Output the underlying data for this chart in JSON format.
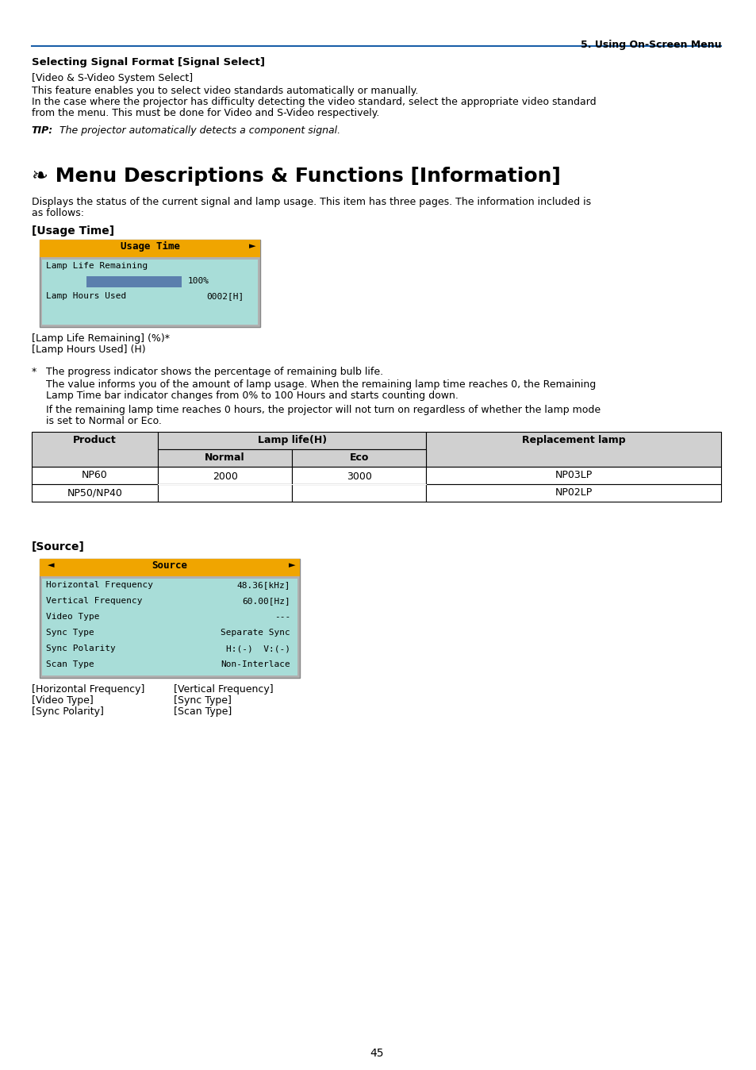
{
  "page_header": "5. Using On-Screen Menu",
  "section1_title": "Selecting Signal Format [Signal Select]",
  "section1_sub": "[Video & S-Video System Select]",
  "section1_body": "This feature enables you to select video standards automatically or manually.\nIn the case where the projector has difficulty detecting the video standard, select the appropriate video standard from the menu. This must be done for Video and S-Video respectively.",
  "tip_text": "TIP: The projector automatically detects a component signal.",
  "section2_title": "❧ Menu Descriptions & Functions [Information]",
  "section2_body": "Displays the status of the current signal and lamp usage. This item has three pages. The information included is as follows:",
  "usage_time_title": "[Usage Time]",
  "ui_usage_header": "Usage Time",
  "ui_lamp_life_label": "Lamp Life Remaining",
  "ui_lamp_life_pct": "100%",
  "ui_lamp_hours_label": "Lamp Hours Used",
  "ui_lamp_hours_val": "0002[H]",
  "ui_bar_color": "#5b7fad",
  "ui_header_bg": "#f0a500",
  "ui_body_bg": "#a8ddd8",
  "ui_outer_bg": "#b0b0b0",
  "caption1_line1": "[Lamp Life Remaining] (%)*",
  "caption1_line2": "[Lamp Hours Used] (H)",
  "bullet_star": "*",
  "bullet_text1": "The progress indicator shows the percentage of remaining bulb life.",
  "bullet_text2": "The value informs you of the amount of lamp usage. When the remaining lamp time reaches 0, the Remaining Lamp Time bar indicator changes from 0% to 100 Hours and starts counting down.",
  "bullet_text3": "If the remaining lamp time reaches 0 hours, the projector will not turn on regardless of whether the lamp mode is set to Normal or Eco.",
  "table_col0": "Product",
  "table_col1_main": "Lamp life(H)",
  "table_col1a": "Normal",
  "table_col1b": "Eco",
  "table_col2": "Replacement lamp",
  "table_row1_product": "NP60",
  "table_row2_product": "NP50/NP40",
  "table_row_normal": "2000",
  "table_row_eco": "3000",
  "table_row1_lamp": "NP03LP",
  "table_row2_lamp": "NP02LP",
  "source_title": "[Source]",
  "ui2_header": "Source",
  "ui2_hfreq_label": "Horizontal Frequency",
  "ui2_hfreq_val": "48.36[kHz]",
  "ui2_vfreq_label": "Vertical Frequency",
  "ui2_vfreq_val": "60.00[Hz]",
  "ui2_vtype_label": "Video Type",
  "ui2_vtype_val": "---",
  "ui2_sync_label": "Sync Type",
  "ui2_sync_val": "Separate Sync",
  "ui2_polarity_label": "Sync Polarity",
  "ui2_polarity_val": "H:(-)  V:(-)",
  "ui2_scan_label": "Scan Type",
  "ui2_scan_val": "Non-Interlace",
  "caption2_col1_line1": "[Horizontal Frequency]",
  "caption2_col1_line2": "[Video Type]",
  "caption2_col1_line3": "[Sync Polarity]",
  "caption2_col2_line1": "[Vertical Frequency]",
  "caption2_col2_line2": "[Sync Type]",
  "caption2_col2_line3": "[Scan Type]",
  "page_num": "45",
  "bg_color": "#ffffff",
  "text_color": "#000000",
  "header_line_color": "#1a5fa8"
}
